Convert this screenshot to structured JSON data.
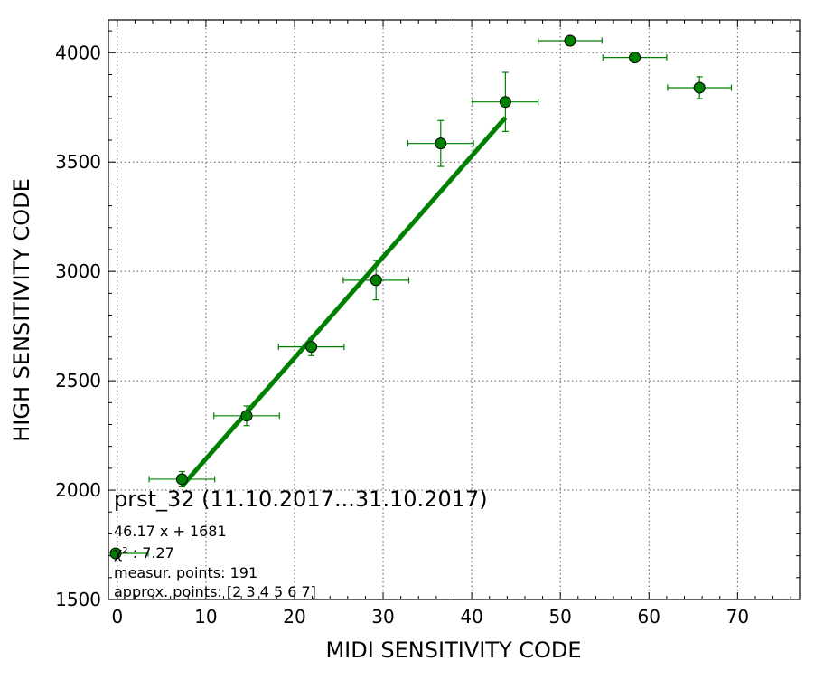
{
  "chart_data": {
    "type": "scatter",
    "title": "prst_32 (11.10.2017...31.10.2017)",
    "xlabel": "MIDI SENSITIVITY CODE",
    "ylabel": "HIGH SENSITIVITY CODE",
    "xlim": [
      -1,
      77
    ],
    "ylim": [
      1500,
      4150
    ],
    "xticks": [
      0,
      10,
      20,
      30,
      40,
      50,
      60,
      70
    ],
    "yticks": [
      1500,
      2000,
      2500,
      3000,
      3500,
      4000
    ],
    "grid": true,
    "color": "#008000",
    "series": [
      {
        "points": [
          {
            "x": 7.3,
            "y": 2050,
            "xerr": 3.7,
            "yerr": 35
          },
          {
            "x": 14.6,
            "y": 2340,
            "xerr": 3.7,
            "yerr": 45
          },
          {
            "x": 21.9,
            "y": 2655,
            "xerr": 3.7,
            "yerr": 40
          },
          {
            "x": 29.2,
            "y": 2960,
            "xerr": 3.7,
            "yerr": 90
          },
          {
            "x": 36.5,
            "y": 3585,
            "xerr": 3.7,
            "yerr": 105
          },
          {
            "x": 43.8,
            "y": 3775,
            "xerr": 3.7,
            "yerr": 135
          },
          {
            "x": 51.1,
            "y": 4055,
            "xerr": 3.6,
            "yerr": 0
          },
          {
            "x": 58.4,
            "y": 3978,
            "xerr": 3.6,
            "yerr": 0
          },
          {
            "x": 65.7,
            "y": 3840,
            "xerr": 3.6,
            "yerr": 50
          }
        ]
      }
    ],
    "fit": {
      "slope": 46.17,
      "intercept": 1681,
      "x_range": [
        7.3,
        43.8
      ]
    },
    "info_lines": [
      "46.17 x + 1681",
      "χ² : 7.27",
      "measur. points: 191",
      "approx. points: [2 3 4 5 6 7]"
    ]
  }
}
